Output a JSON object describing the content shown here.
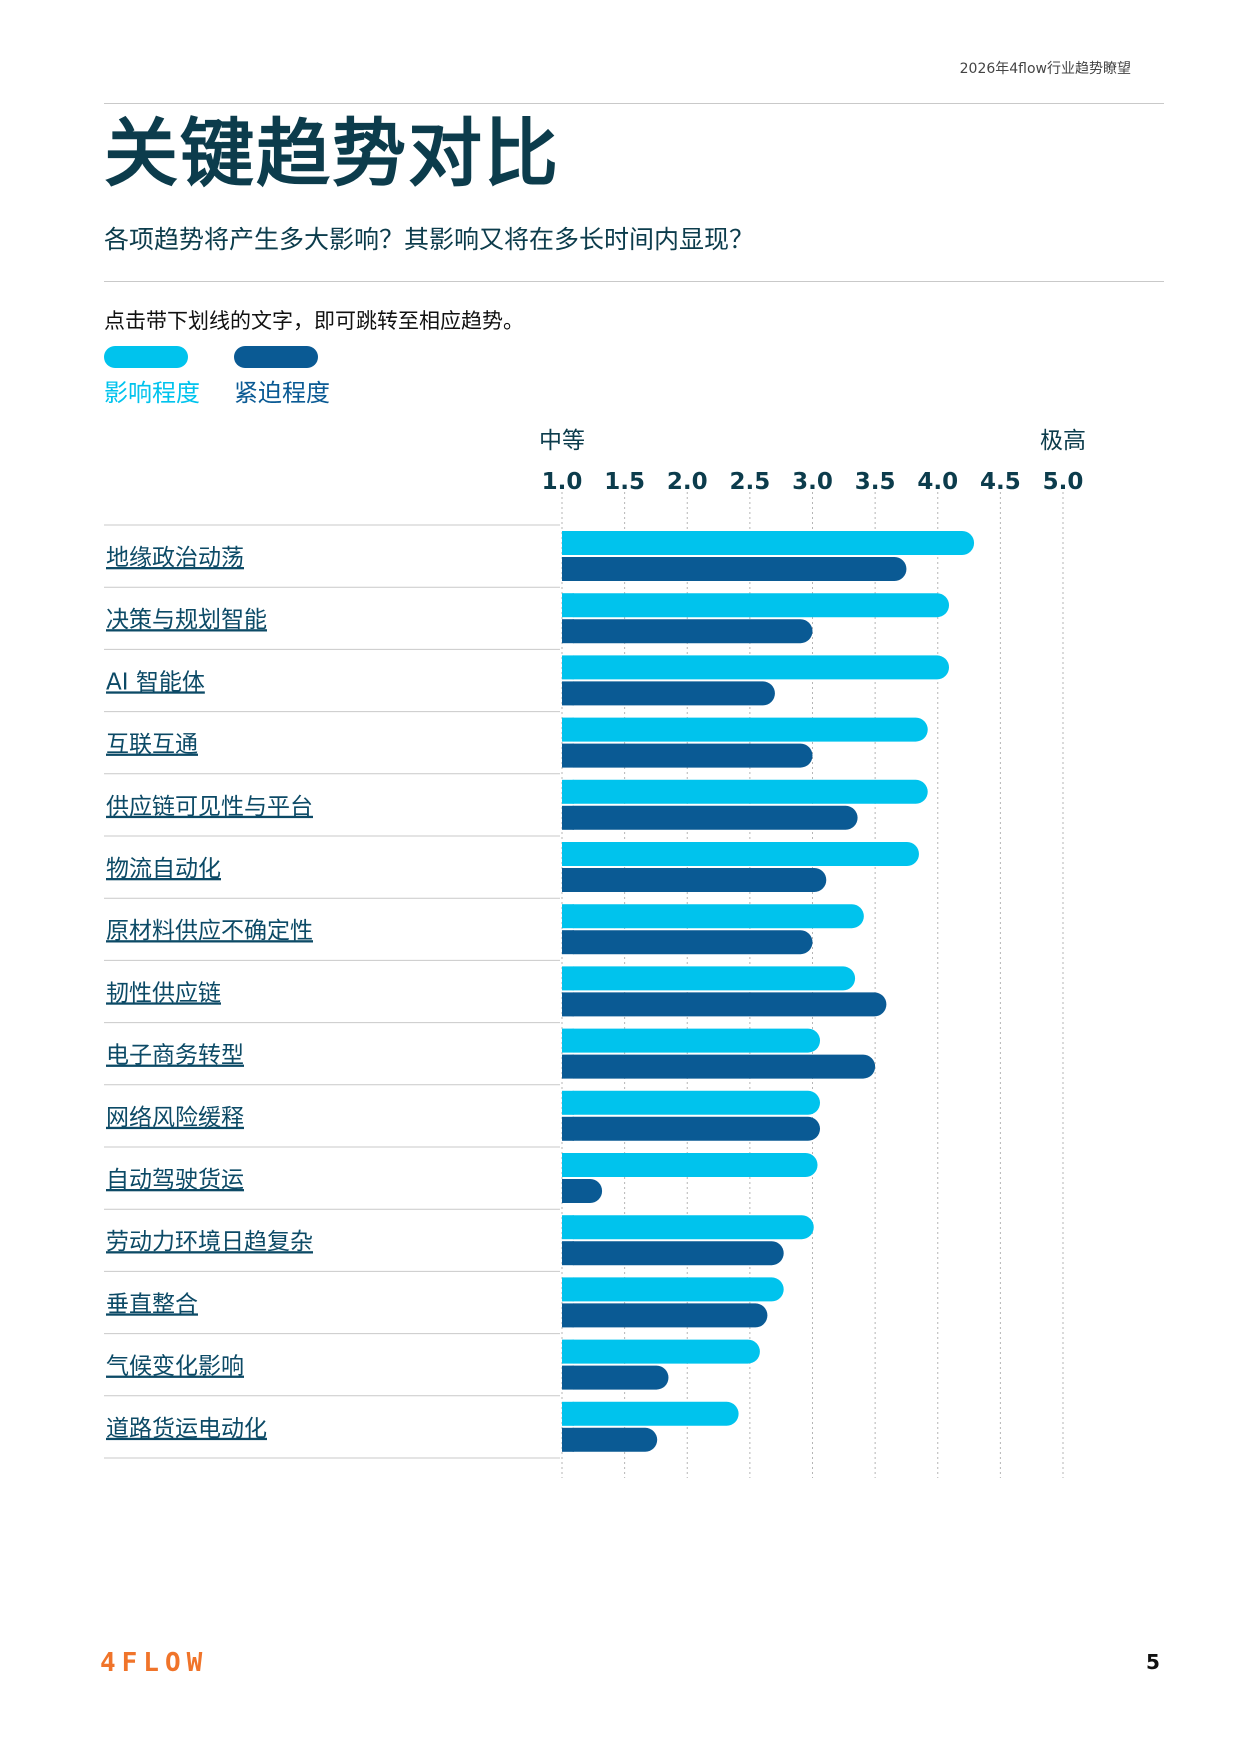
{
  "header": {
    "report_title": "2026年4flow行业趋势瞭望",
    "page_title": "关键趋势对比",
    "subtitle": "各项趋势将产生多大影响？其影响又将在多长时间内显现？",
    "hint": "点击带下划线的文字，即可跳转至相应趋势。"
  },
  "legend": [
    {
      "label": "影响程度",
      "color": "#00c3ed"
    },
    {
      "label": "紧迫程度",
      "color": "#0a5a94"
    }
  ],
  "chart_data": {
    "type": "bar",
    "orientation": "horizontal",
    "scale_low_label": "中等",
    "scale_high_label": "极高",
    "xlim": [
      1.0,
      5.0
    ],
    "x_ticks": [
      "1.0",
      "1.5",
      "2.0",
      "2.5",
      "3.0",
      "3.5",
      "4.0",
      "4.5",
      "5.0"
    ],
    "grid": "vertical dotted",
    "categories": [
      "地缘政治动荡",
      "决策与规划智能",
      "AI 智能体",
      "互联互通",
      "供应链可见性与平台",
      "物流自动化",
      "原材料供应不确定性",
      "韧性供应链",
      "电子商务转型",
      "网络风险缓释",
      "自动驾驶货运",
      "劳动力环境日趋复杂",
      "垂直整合",
      "气候变化影响",
      "道路货运电动化"
    ],
    "series": [
      {
        "name": "影响程度",
        "color": "#00c3ed",
        "values": [
          4.29,
          4.09,
          4.09,
          3.92,
          3.92,
          3.85,
          3.41,
          3.34,
          3.06,
          3.06,
          3.04,
          3.01,
          2.77,
          2.58,
          2.41
        ]
      },
      {
        "name": "紧迫程度",
        "color": "#0a5a94",
        "values": [
          3.75,
          3.0,
          2.7,
          3.0,
          3.36,
          3.11,
          3.0,
          3.59,
          3.5,
          3.06,
          1.32,
          2.77,
          2.64,
          1.85,
          1.76
        ]
      }
    ]
  },
  "footer": {
    "logo": "4FLOW",
    "page_number": "5"
  }
}
